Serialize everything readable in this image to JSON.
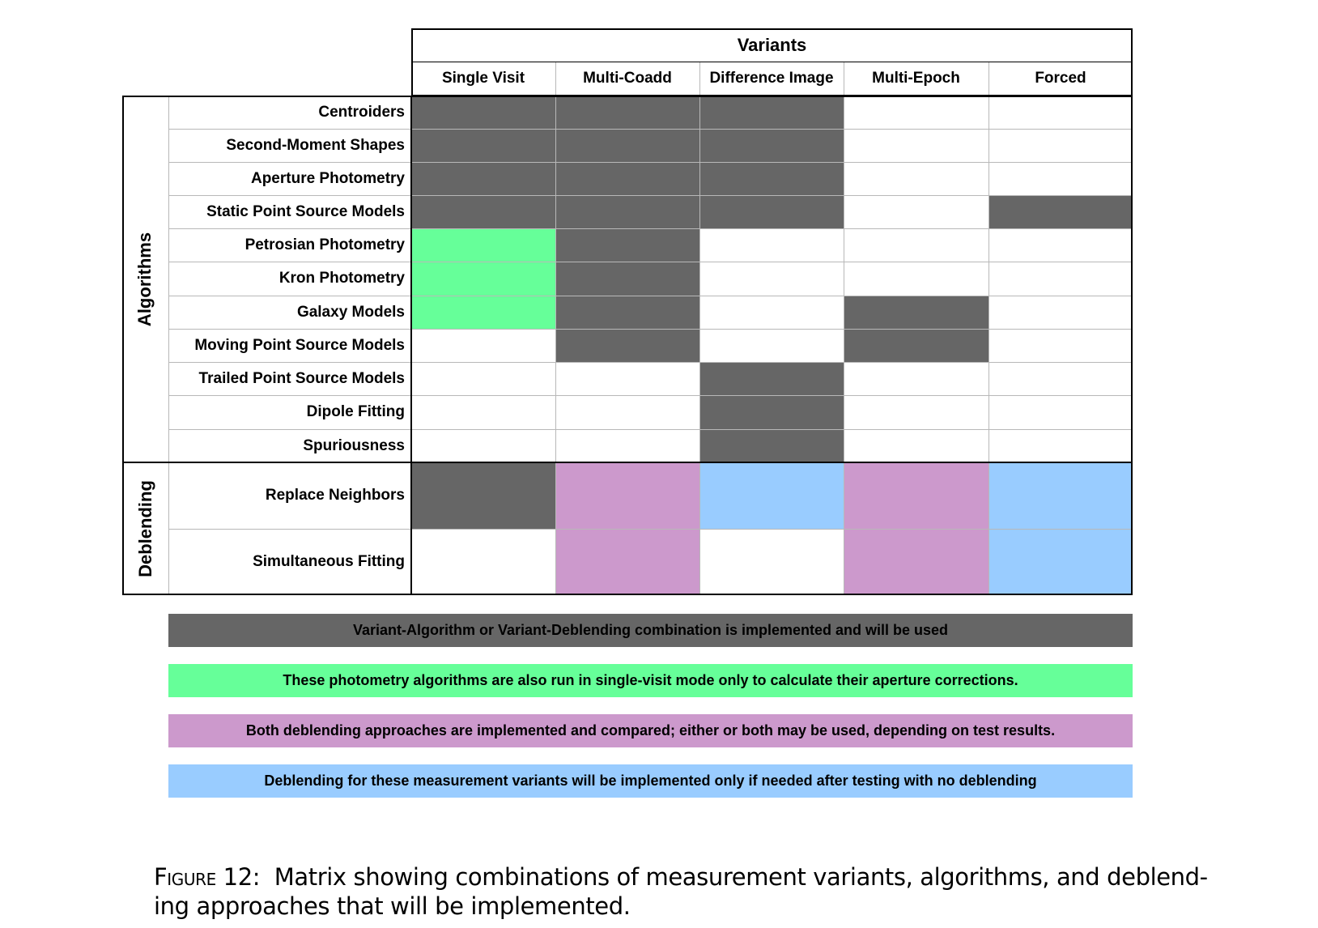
{
  "header": {
    "group_title": "Variants",
    "columns": [
      "Single Visit",
      "Multi-Coadd",
      "Difference Image",
      "Multi-Epoch",
      "Forced"
    ]
  },
  "groups": [
    {
      "label": "Algorithms",
      "rows": 11
    },
    {
      "label": "Deblending",
      "rows": 2
    }
  ],
  "rows": [
    {
      "label": "Centroiders",
      "cells": [
        "dark",
        "dark",
        "dark",
        "none",
        "none"
      ]
    },
    {
      "label": "Second-Moment Shapes",
      "cells": [
        "dark",
        "dark",
        "dark",
        "none",
        "none"
      ]
    },
    {
      "label": "Aperture Photometry",
      "cells": [
        "dark",
        "dark",
        "dark",
        "none",
        "none"
      ]
    },
    {
      "label": "Static Point Source Models",
      "cells": [
        "dark",
        "dark",
        "dark",
        "none",
        "dark"
      ]
    },
    {
      "label": "Petrosian Photometry",
      "cells": [
        "green",
        "dark",
        "none",
        "none",
        "none"
      ]
    },
    {
      "label": "Kron Photometry",
      "cells": [
        "green",
        "dark",
        "none",
        "none",
        "none"
      ]
    },
    {
      "label": "Galaxy Models",
      "cells": [
        "green",
        "dark",
        "none",
        "dark",
        "none"
      ]
    },
    {
      "label": "Moving Point Source Models",
      "cells": [
        "none",
        "dark",
        "none",
        "dark",
        "none"
      ]
    },
    {
      "label": "Trailed Point Source Models",
      "cells": [
        "none",
        "none",
        "dark",
        "none",
        "none"
      ]
    },
    {
      "label": "Dipole Fitting",
      "cells": [
        "none",
        "none",
        "dark",
        "none",
        "none"
      ]
    },
    {
      "label": "Spuriousness",
      "cells": [
        "none",
        "none",
        "dark",
        "none",
        "none"
      ]
    },
    {
      "label": "Replace Neighbors",
      "cells": [
        "dark",
        "purple",
        "blue",
        "purple",
        "blue"
      ]
    },
    {
      "label": "Simultaneous Fitting",
      "cells": [
        "none",
        "purple",
        "none",
        "purple",
        "blue"
      ]
    }
  ],
  "colors": {
    "dark": "#666666",
    "green": "#66ff99",
    "purple": "#cc99cc",
    "blue": "#99ccff"
  },
  "legend": [
    {
      "key": "dark",
      "text": "Variant-Algorithm or Variant-Deblending combination is implemented and will be used"
    },
    {
      "key": "green",
      "text": "These photometry algorithms are also run in single-visit mode only to calculate their aperture corrections."
    },
    {
      "key": "purple",
      "text": "Both deblending approaches are implemented and compared; either or both may be used, depending on test results."
    },
    {
      "key": "blue",
      "text": "Deblending for these measurement variants will be implemented only if needed after testing with no deblending"
    }
  ],
  "caption": {
    "figure": "Figure 12:",
    "text": "Matrix showing combinations of measurement variants, algorithms, and deblend-ing approaches that will be implemented.",
    "line1": "Matrix showing combinations of measurement variants, algorithms, and deblend-",
    "line2": "ing approaches that will be implemented."
  }
}
